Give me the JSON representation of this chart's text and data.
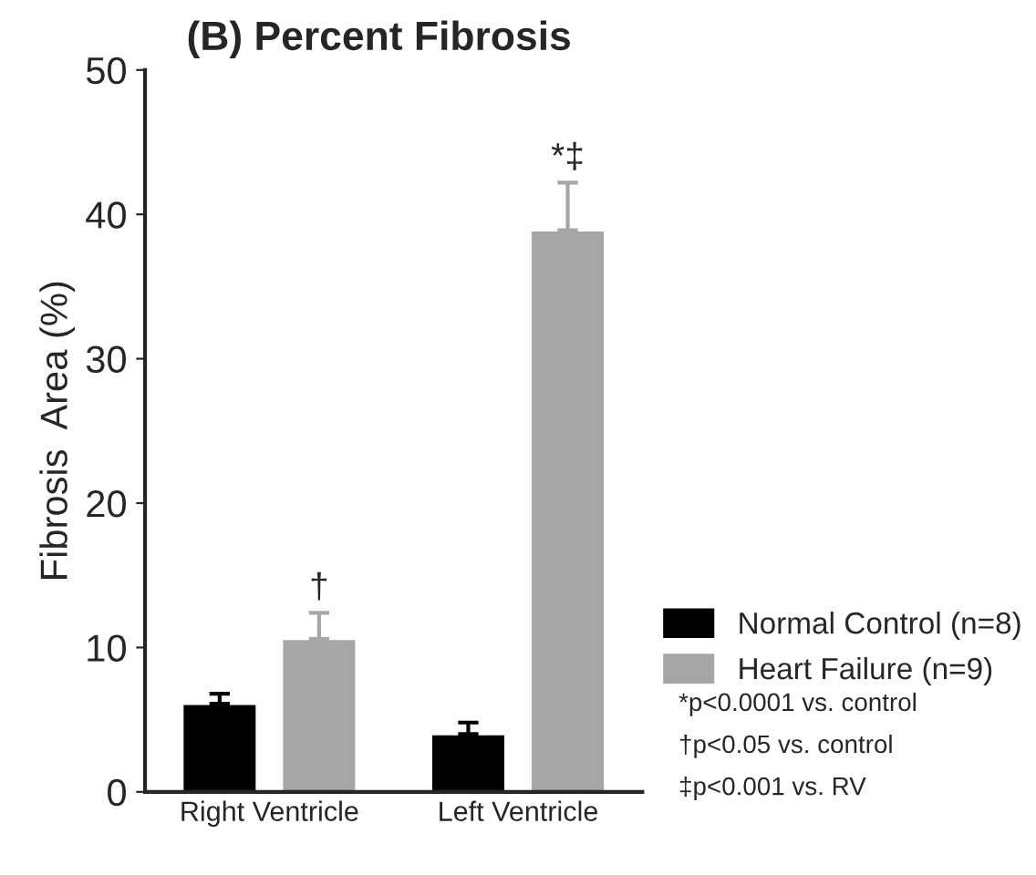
{
  "chart_data": {
    "type": "bar",
    "title": "(B) Percent Fibrosis",
    "ylabel": "Fibrosis  Area (%)",
    "categories": [
      "Right Ventricle",
      "Left Ventricle"
    ],
    "series": [
      {
        "name": "Normal Control (n=8)",
        "color": "#000000",
        "values": [
          6.1,
          4.0
        ],
        "errors": [
          [
            6.1,
            6.8
          ],
          [
            4.0,
            4.8
          ]
        ]
      },
      {
        "name": "Heart Failure (n=9)",
        "color": "#a6a6a6",
        "values": [
          10.6,
          38.9
        ],
        "errors": [
          [
            10.6,
            12.4
          ],
          [
            38.9,
            42.2
          ]
        ],
        "value_labels": [
          "†",
          "*‡"
        ]
      }
    ],
    "ylim": [
      0,
      50
    ],
    "yticks": [
      0,
      10,
      20,
      30,
      40,
      50
    ],
    "grid": false,
    "legend": "right",
    "annotations": [
      "*p<0.0001 vs. control",
      "†p<0.05 vs. control",
      "‡p<0.001 vs. RV"
    ]
  }
}
